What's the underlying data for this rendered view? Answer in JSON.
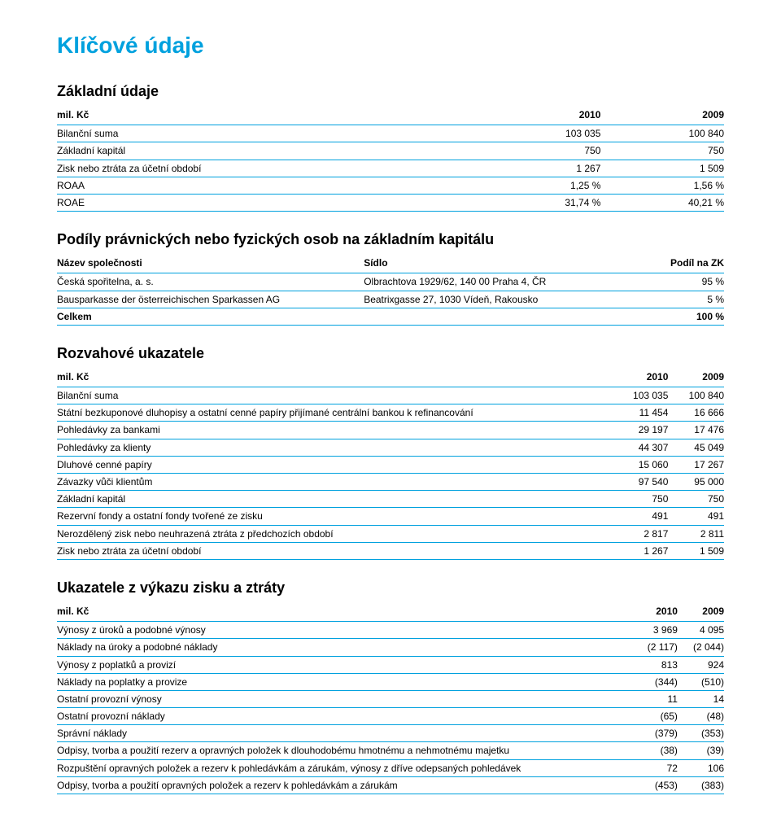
{
  "page": {
    "title": "Klíčové údaje",
    "accent_color": "#00a1de",
    "text_color": "#000000",
    "background_color": "#ffffff"
  },
  "basic": {
    "heading": "Základní údaje",
    "unit_label": "mil. Kč",
    "col_2010": "2010",
    "col_2009": "2009",
    "rows": [
      {
        "label": "Bilanční suma",
        "v2010": "103 035",
        "v2009": "100 840"
      },
      {
        "label": "Základní kapitál",
        "v2010": "750",
        "v2009": "750"
      },
      {
        "label": "Zisk nebo ztráta za účetní období",
        "v2010": "1 267",
        "v2009": "1 509"
      },
      {
        "label": "ROAA",
        "v2010": "1,25 %",
        "v2009": "1,56 %"
      },
      {
        "label": "ROAE",
        "v2010": "31,74 %",
        "v2009": "40,21 %"
      }
    ]
  },
  "ownership": {
    "heading": "Podíly právnických nebo fyzických osob na základním kapitálu",
    "col_name": "Název společnosti",
    "col_seat": "Sídlo",
    "col_share": "Podíl na ZK",
    "rows": [
      {
        "name": "Česká spořitelna, a. s.",
        "seat": "Olbrachtova 1929/62, 140 00  Praha 4, ČR",
        "share": "95 %"
      },
      {
        "name": "Bausparkasse der österreichischen Sparkassen AG",
        "seat": "Beatrixgasse 27, 1030  Vídeň, Rakousko",
        "share": "5 %"
      }
    ],
    "total_label": "Celkem",
    "total_value": "100 %"
  },
  "balance": {
    "heading": "Rozvahové ukazatele",
    "unit_label": "mil. Kč",
    "col_2010": "2010",
    "col_2009": "2009",
    "rows": [
      {
        "label": "Bilanční suma",
        "v2010": "103 035",
        "v2009": "100 840"
      },
      {
        "label": "Státní bezkuponové dluhopisy a ostatní cenné papíry přijímané centrální bankou k refinancování",
        "v2010": "11 454",
        "v2009": "16 666"
      },
      {
        "label": "Pohledávky za bankami",
        "v2010": "29 197",
        "v2009": "17 476"
      },
      {
        "label": "Pohledávky za klienty",
        "v2010": "44 307",
        "v2009": "45 049"
      },
      {
        "label": "Dluhové cenné papíry",
        "v2010": "15 060",
        "v2009": "17 267"
      },
      {
        "label": "Závazky vůči klientům",
        "v2010": "97 540",
        "v2009": "95 000"
      },
      {
        "label": "Základní kapitál",
        "v2010": "750",
        "v2009": "750"
      },
      {
        "label": "Rezervní fondy a ostatní fondy tvořené ze zisku",
        "v2010": "491",
        "v2009": "491"
      },
      {
        "label": "Nerozdělený zisk nebo neuhrazená ztráta z předchozích období",
        "v2010": "2 817",
        "v2009": "2 811"
      },
      {
        "label": "Zisk nebo ztráta za účetní období",
        "v2010": "1 267",
        "v2009": "1 509"
      }
    ]
  },
  "income": {
    "heading": "Ukazatele z výkazu zisku a ztráty",
    "unit_label": "mil. Kč",
    "col_2010": "2010",
    "col_2009": "2009",
    "rows": [
      {
        "label": "Výnosy z úroků a podobné výnosy",
        "v2010": "3 969",
        "v2009": "4 095"
      },
      {
        "label": "Náklady na úroky a podobné náklady",
        "v2010": "(2 117)",
        "v2009": "(2 044)"
      },
      {
        "label": "Výnosy z poplatků a provizí",
        "v2010": "813",
        "v2009": "924"
      },
      {
        "label": "Náklady na poplatky a provize",
        "v2010": "(344)",
        "v2009": "(510)"
      },
      {
        "label": "Ostatní provozní výnosy",
        "v2010": "11",
        "v2009": "14"
      },
      {
        "label": "Ostatní provozní náklady",
        "v2010": "(65)",
        "v2009": "(48)"
      },
      {
        "label": "Správní náklady",
        "v2010": "(379)",
        "v2009": "(353)"
      },
      {
        "label": "Odpisy, tvorba a použití rezerv a opravných položek k dlouhodobému hmotnému a nehmotnému majetku",
        "v2010": "(38)",
        "v2009": "(39)"
      },
      {
        "label": "Rozpuštění opravných položek a rezerv k pohledávkám a zárukám, výnosy z dříve odepsaných pohledávek",
        "v2010": "72",
        "v2009": "106"
      },
      {
        "label": "Odpisy, tvorba a použití opravných položek a rezerv k pohledávkám a zárukám",
        "v2010": "(453)",
        "v2009": "(383)"
      }
    ]
  }
}
